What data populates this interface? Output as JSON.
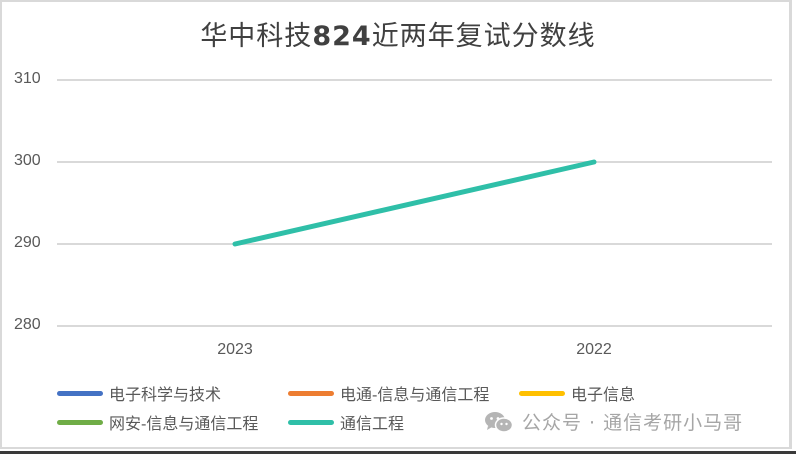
{
  "title": {
    "prefix": "华中科技",
    "code": "824",
    "suffix": "近两年复试分数线"
  },
  "y_axis": {
    "ticks": [
      "310",
      "300",
      "290",
      "280"
    ]
  },
  "x_axis": {
    "ticks": [
      "2023",
      "2022"
    ]
  },
  "legend": [
    {
      "label": "电子科学与技术",
      "color": "#4472c4"
    },
    {
      "label": "电通-信息与通信工程",
      "color": "#ed7d31"
    },
    {
      "label": "电子信息",
      "color": "#ffc000"
    },
    {
      "label": "网安-信息与通信工程",
      "color": "#70ad47"
    },
    {
      "label": "通信工程",
      "color": "#2fbfa8"
    }
  ],
  "watermark": {
    "text": "公众号 · 通信考研小马哥",
    "icon": "wechat-icon"
  },
  "chart_data": {
    "type": "line",
    "title": "华中科技824近两年复试分数线",
    "categories": [
      "2023",
      "2022"
    ],
    "series": [
      {
        "name": "电子科学与技术",
        "values": [
          null,
          null
        ],
        "color": "#4472c4"
      },
      {
        "name": "电通-信息与通信工程",
        "values": [
          null,
          null
        ],
        "color": "#ed7d31"
      },
      {
        "name": "电子信息",
        "values": [
          null,
          null
        ],
        "color": "#ffc000"
      },
      {
        "name": "网安-信息与通信工程",
        "values": [
          null,
          null
        ],
        "color": "#70ad47"
      },
      {
        "name": "通信工程",
        "values": [
          290,
          300
        ],
        "color": "#2fbfa8"
      }
    ],
    "xlabel": "",
    "ylabel": "",
    "ylim": [
      280,
      310
    ],
    "yticks": [
      280,
      290,
      300,
      310
    ],
    "grid": true,
    "legend_position": "bottom"
  }
}
